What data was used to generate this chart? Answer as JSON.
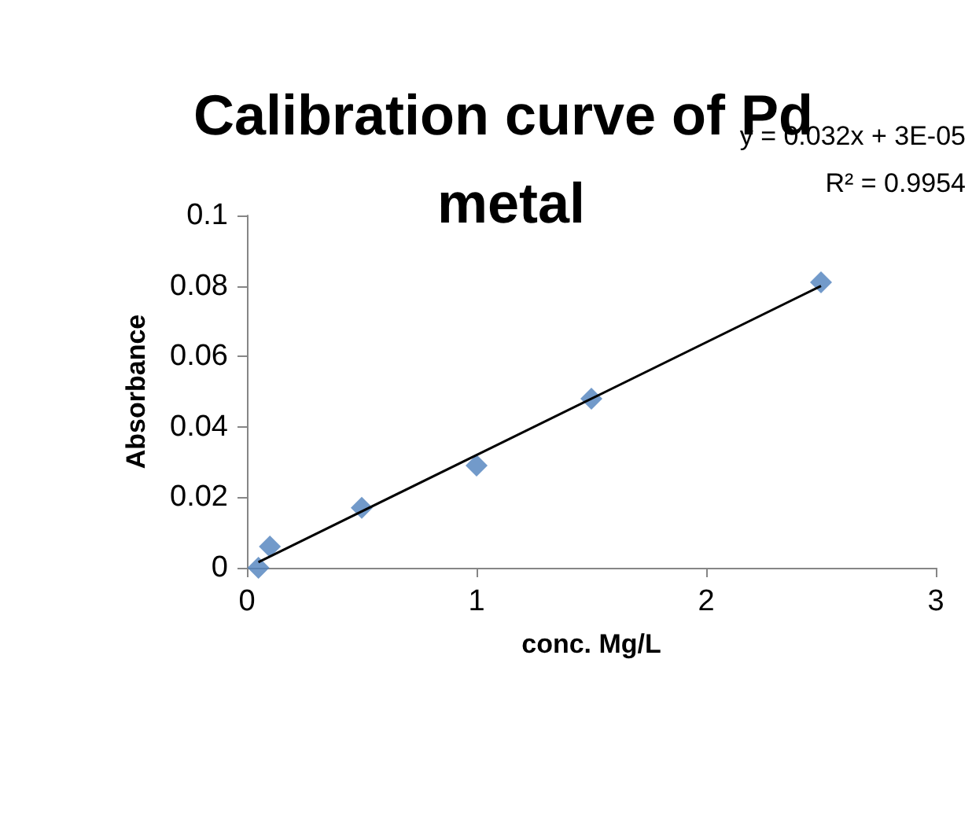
{
  "chart_data": {
    "type": "scatter",
    "title": "Calibration curve of Pd metal",
    "xlabel": "conc. Mg/L",
    "ylabel": "Absorbance",
    "annotations": [
      "y = 0.032x + 3E-05",
      "R² = 0.9954"
    ],
    "series": [
      {
        "color": "#4f81bd",
        "x": [
          0.05,
          0.1,
          0.5,
          1,
          1.5,
          2.5
        ],
        "values": [
          0,
          0.006,
          0.017,
          0.029,
          0.048,
          0.081
        ],
        "marker": "diamond"
      },
      {
        "type": "line",
        "color": "#000000",
        "x": [
          0.05,
          2.5
        ],
        "values": [
          0.0016,
          0.08
        ],
        "marker": "none",
        "line_style": "solid"
      }
    ],
    "xlim": [
      0,
      3
    ],
    "xticks": [
      0,
      1,
      2,
      3
    ],
    "ylim": [
      0,
      0.1
    ],
    "yticks": [
      0,
      0.02,
      0.04,
      0.06,
      0.08,
      0.1
    ],
    "grid": false
  }
}
